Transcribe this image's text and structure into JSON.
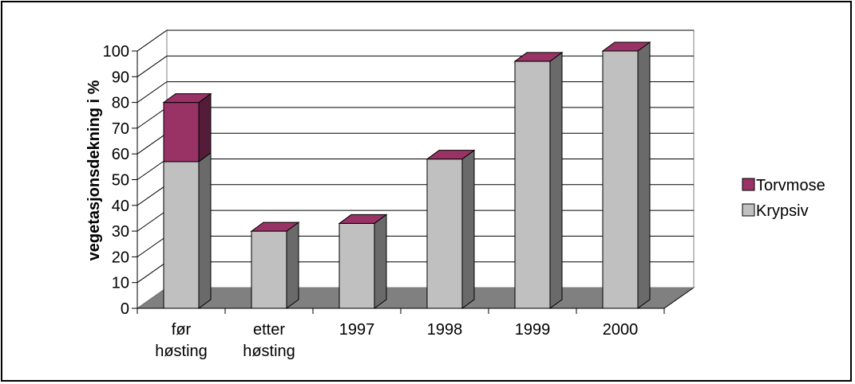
{
  "chart_data": {
    "type": "bar",
    "stacked": true,
    "three_d": true,
    "title": "",
    "xlabel": "",
    "ylabel": "vegetasjonsdekning i %",
    "ylim": [
      0,
      100
    ],
    "yticks": [
      0,
      10,
      20,
      30,
      40,
      50,
      60,
      70,
      80,
      90,
      100
    ],
    "grid": true,
    "legend_position": "right",
    "categories": [
      [
        "før",
        "høsting"
      ],
      [
        "etter",
        "høsting"
      ],
      [
        "1997"
      ],
      [
        "1998"
      ],
      [
        "1999"
      ],
      [
        "2000"
      ]
    ],
    "series": [
      {
        "name": "Krypsiv",
        "values": [
          57,
          30,
          33,
          58,
          96,
          100
        ],
        "color": "#C0C0C0"
      },
      {
        "name": "Torvmose",
        "values": [
          23,
          0,
          0,
          0,
          0,
          0
        ],
        "color": "#993366"
      }
    ],
    "legend_order": [
      "Torvmose",
      "Krypsiv"
    ]
  }
}
